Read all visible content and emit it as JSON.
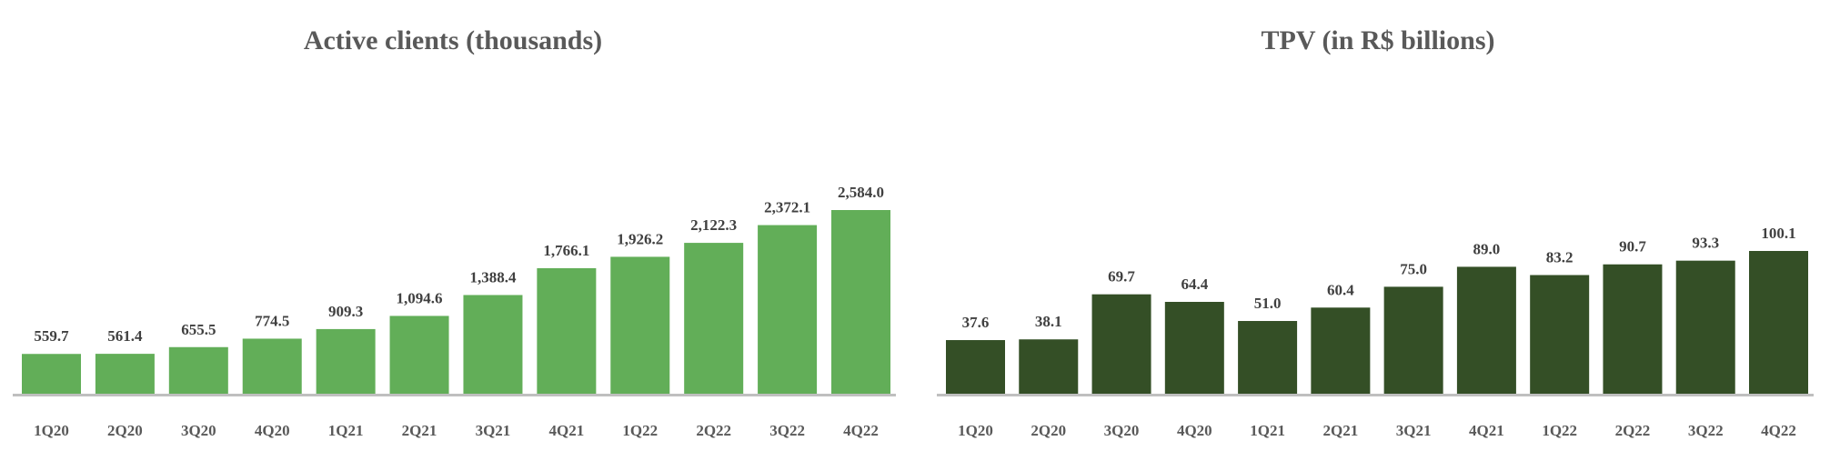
{
  "chart_data": [
    {
      "type": "bar",
      "title": "Active clients (thousands)",
      "categories": [
        "1Q20",
        "2Q20",
        "3Q20",
        "4Q20",
        "1Q21",
        "2Q21",
        "3Q21",
        "4Q21",
        "1Q22",
        "2Q22",
        "3Q22",
        "4Q22"
      ],
      "values": [
        559.7,
        561.4,
        655.5,
        774.5,
        909.3,
        1094.6,
        1388.4,
        1766.1,
        1926.2,
        2122.3,
        2372.1,
        2584.0
      ],
      "value_labels": [
        "559.7",
        "561.4",
        "655.5",
        "774.5",
        "909.3",
        "1,094.6",
        "1,388.4",
        "1,766.1",
        "1,926.2",
        "2,122.3",
        "2,372.1",
        "2,584.0"
      ],
      "color": "#62ae58",
      "ylim": [
        0,
        2584.0
      ],
      "grid": false,
      "legend": "none"
    },
    {
      "type": "bar",
      "title": "TPV (in R$ billions)",
      "categories": [
        "1Q20",
        "2Q20",
        "3Q20",
        "4Q20",
        "1Q21",
        "2Q21",
        "3Q21",
        "4Q21",
        "1Q22",
        "2Q22",
        "3Q22",
        "4Q22"
      ],
      "values": [
        37.6,
        38.1,
        69.7,
        64.4,
        51.0,
        60.4,
        75.0,
        89.0,
        83.2,
        90.7,
        93.3,
        100.1
      ],
      "value_labels": [
        "37.6",
        "38.1",
        "69.7",
        "64.4",
        "51.0",
        "60.4",
        "75.0",
        "89.0",
        "83.2",
        "90.7",
        "93.3",
        "100.1"
      ],
      "color": "#344f26",
      "ylim": [
        0,
        100.1
      ],
      "grid": false,
      "legend": "none"
    }
  ],
  "colors": {
    "axis": "#bfbfbf",
    "title": "#595959",
    "labels": "#404040"
  }
}
